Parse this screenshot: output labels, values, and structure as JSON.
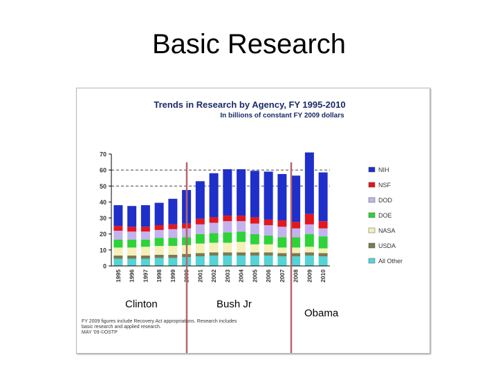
{
  "slide": {
    "title": "Basic Research"
  },
  "chart_data": {
    "type": "bar",
    "stacked": true,
    "title": "Trends in Research by Agency, FY 1995-2010",
    "subtitle": "In billions of constant FY 2009 dollars",
    "xlabel": "",
    "ylabel": "",
    "ylim": [
      0,
      70
    ],
    "yticks": [
      0,
      10,
      20,
      30,
      40,
      50,
      60,
      70
    ],
    "grid": false,
    "legend_position": "right",
    "categories": [
      "1995",
      "1996",
      "1997",
      "1998",
      "1999",
      "2000",
      "2001",
      "2002",
      "2003",
      "2004",
      "2005",
      "2006",
      "2007",
      "2008",
      "2009",
      "2010"
    ],
    "series": [
      {
        "name": "All Other",
        "color": "#55d3d6",
        "values": [
          4.5,
          4.5,
          4.5,
          5,
          5,
          5.5,
          6,
          6.5,
          6.5,
          6.5,
          6.5,
          6.5,
          6,
          6,
          6.5,
          6
        ]
      },
      {
        "name": "USDA",
        "color": "#7a7a52",
        "values": [
          2,
          2,
          2,
          2,
          2,
          2,
          2,
          2,
          2,
          2,
          2,
          2,
          2,
          2,
          2,
          2
        ]
      },
      {
        "name": "NASA",
        "color": "#f4f0b8",
        "values": [
          5,
          5,
          5.5,
          5.5,
          5.5,
          5.5,
          6,
          6,
          6,
          6.5,
          5,
          5,
          3.5,
          3.5,
          3.5,
          3
        ]
      },
      {
        "name": "DOE",
        "color": "#2ed33a",
        "values": [
          5,
          5,
          4.5,
          5,
          5,
          5,
          6,
          6,
          6.5,
          6.5,
          6.5,
          5.5,
          6.5,
          6.5,
          8,
          7.5
        ]
      },
      {
        "name": "DOD",
        "color": "#c4b2ee",
        "values": [
          5.5,
          5,
          5,
          5,
          5.5,
          5.5,
          6,
          6.5,
          7,
          6.5,
          6.5,
          6.5,
          6.5,
          5.5,
          6,
          5
        ]
      },
      {
        "name": "NSF",
        "color": "#e4161e",
        "values": [
          3,
          3,
          3,
          3,
          3,
          3,
          3.5,
          3.5,
          3.5,
          3.5,
          4,
          3.5,
          4,
          4,
          6.5,
          4.5
        ]
      },
      {
        "name": "NIH",
        "color": "#1f2fc9",
        "values": [
          13,
          13,
          13.5,
          14,
          16,
          21,
          23.5,
          27.5,
          29,
          29,
          29,
          30,
          29,
          29,
          38.5,
          30.5
        ]
      }
    ],
    "reference_lines": [
      60,
      50
    ]
  },
  "annotations": {
    "eras": [
      "Clinton",
      "Bush Jr",
      "Obama"
    ],
    "divider_color": "#b5666b"
  },
  "footnote": {
    "lines": [
      "FY 2009 figures include Recovery Act appropriations. Research includes",
      "basic research and applied research.",
      "MAY '09 ©OSTP"
    ]
  }
}
